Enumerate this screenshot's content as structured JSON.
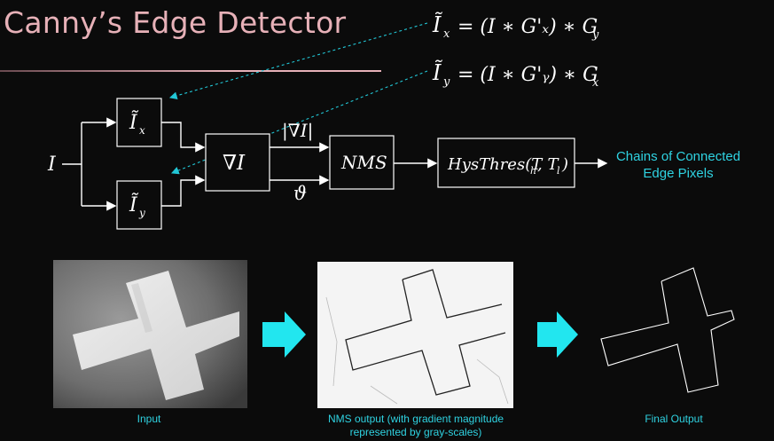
{
  "slide": {
    "title": "Canny’s Edge Detector",
    "accent_color": "#e7b1b8",
    "caption_color": "#2fd3e2"
  },
  "equations": {
    "eq_x": {
      "lhs": "Ĩx",
      "rhs": "= (I * G'x) * Gy"
    },
    "eq_y": {
      "lhs": "Ĩy",
      "rhs": "= (I * G'y) * Gx"
    }
  },
  "pipeline": {
    "input_label": "I",
    "box_ix": "Ĩx",
    "box_iy": "Ĩy",
    "box_grad": "∇I",
    "grad_mag_label": "|∇I|",
    "theta_label": "ϑ",
    "box_nms": "NMS",
    "box_hys": "HysThres(Th, Tl)",
    "output_label": "Chains of Connected Edge Pixels"
  },
  "images": {
    "input_caption": "Input",
    "nms_caption": "NMS output (with gradient magnitude represented by gray-scales)",
    "final_caption": "Final Output",
    "arrow_icon": "right-arrow-icon"
  }
}
